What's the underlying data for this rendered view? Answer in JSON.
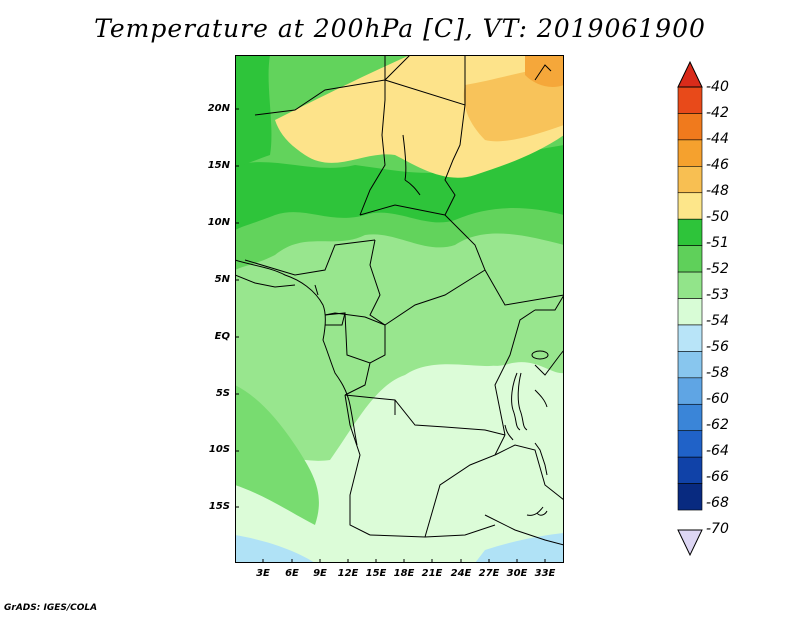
{
  "title": "Temperature at 200hPa [C], VT: 2019061900",
  "credit": "GrADS: IGES/COLA",
  "map": {
    "lat_labels": [
      "20N",
      "15N",
      "10N",
      "5N",
      "EQ",
      "5S",
      "10S",
      "15S"
    ],
    "lon_labels": [
      "3E",
      "6E",
      "9E",
      "12E",
      "15E",
      "18E",
      "21E",
      "24E",
      "27E",
      "30E",
      "33E"
    ]
  },
  "colorbar": {
    "labels": [
      "-40",
      "-42",
      "-44",
      "-46",
      "-48",
      "-50",
      "-51",
      "-52",
      "-53",
      "-54",
      "-56",
      "-58",
      "-60",
      "-62",
      "-64",
      "-66",
      "-68",
      "-70"
    ],
    "colors": {
      "top_arrow": "#d92b1a",
      "c42": "#e84a1a",
      "c44": "#f07a1d",
      "c46": "#f5a12e",
      "c48": "#f8bf52",
      "c50": "#fde68a",
      "c51": "#2ec43a",
      "c52": "#5fd05a",
      "c53": "#92e48a",
      "c54": "#d8fcd6",
      "c56": "#b8e4f8",
      "c58": "#88c6ee",
      "c60": "#5fa5e4",
      "c62": "#3a85d8",
      "c64": "#2062c8",
      "c66": "#1042a8",
      "c68": "#082a80",
      "bottom_arrow": "#ddd6f4"
    }
  }
}
